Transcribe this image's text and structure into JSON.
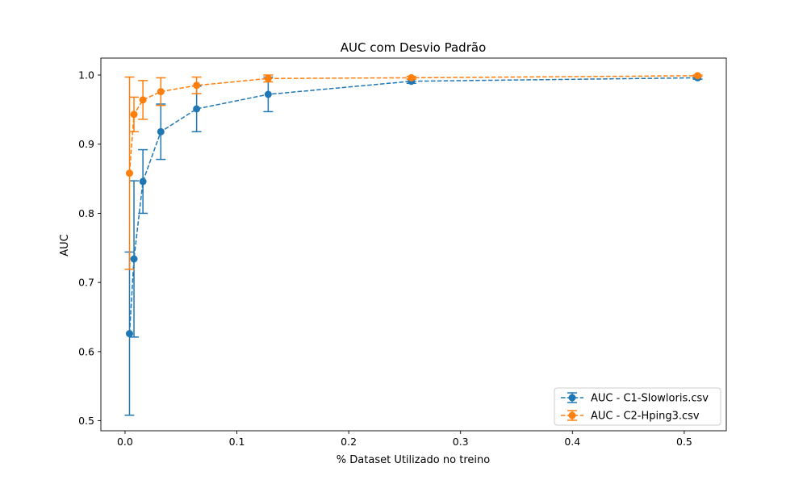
{
  "chart_data": {
    "type": "line",
    "title": "AUC com Desvio Padrão",
    "xlabel": "% Dataset Utilizado no treino",
    "ylabel": "AUC",
    "xlim": [
      -0.0216,
      0.5376
    ],
    "ylim": [
      0.4855,
      1.0245
    ],
    "xticks": [
      0.0,
      0.1,
      0.2,
      0.3,
      0.4,
      0.5
    ],
    "xtick_labels": [
      "0.0",
      "0.1",
      "0.2",
      "0.3",
      "0.4",
      "0.5"
    ],
    "yticks": [
      0.5,
      0.6,
      0.7,
      0.8,
      0.9,
      1.0
    ],
    "ytick_labels": [
      "0.5",
      "0.6",
      "0.7",
      "0.8",
      "0.9",
      "1.0"
    ],
    "grid": false,
    "legend_position": "lower-right",
    "series": [
      {
        "name": "AUC - C1-Slowloris.csv",
        "color": "#1f77b4",
        "marker": "circle",
        "line_style": "dashed",
        "x": [
          0.004,
          0.008,
          0.016,
          0.032,
          0.064,
          0.128,
          0.256,
          0.512
        ],
        "y": [
          0.626,
          0.734,
          0.846,
          0.918,
          0.951,
          0.972,
          0.991,
          0.996
        ],
        "err": [
          0.118,
          0.113,
          0.046,
          0.04,
          0.033,
          0.025,
          0.003,
          0.002
        ]
      },
      {
        "name": "AUC - C2-Hping3.csv",
        "color": "#ff7f0e",
        "marker": "circle",
        "line_style": "dashed",
        "x": [
          0.004,
          0.008,
          0.016,
          0.032,
          0.064,
          0.128,
          0.256,
          0.512
        ],
        "y": [
          0.858,
          0.943,
          0.964,
          0.976,
          0.985,
          0.995,
          0.996,
          0.999
        ],
        "err": [
          0.139,
          0.025,
          0.028,
          0.02,
          0.012,
          0.005,
          0.002,
          0.001
        ]
      }
    ]
  }
}
